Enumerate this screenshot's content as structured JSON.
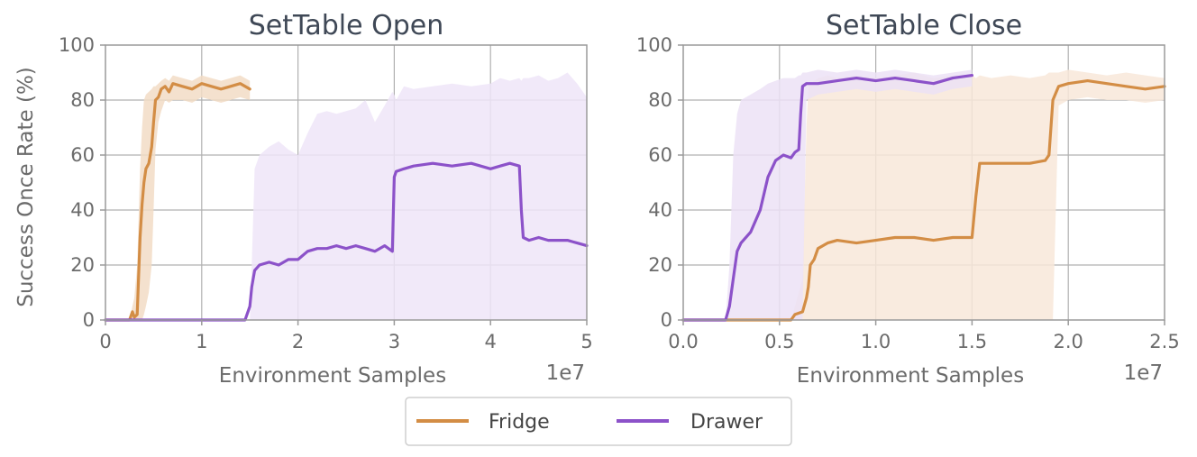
{
  "legend": {
    "placement": "bottom-center",
    "items": [
      {
        "label": "Fridge",
        "color": "#d38d45"
      },
      {
        "label": "Drawer",
        "color": "#8c52c9"
      }
    ]
  },
  "chart_data": [
    {
      "type": "line",
      "title": "SetTable Open",
      "xlabel": "Environment Samples",
      "ylabel": "Success Once Rate (%)",
      "x_offset_text": "1e7",
      "xlim": [
        0,
        5
      ],
      "ylim": [
        0,
        100
      ],
      "xticks": [
        0,
        1,
        2,
        3,
        4,
        5
      ],
      "xtick_labels": [
        "0",
        "1",
        "2",
        "3",
        "4",
        "5"
      ],
      "yticks": [
        0,
        20,
        40,
        60,
        80,
        100
      ],
      "ytick_labels": [
        "0",
        "20",
        "40",
        "60",
        "80",
        "100"
      ],
      "grid": true,
      "series": [
        {
          "name": "Fridge",
          "color": "#d38d45",
          "fill": "#f2dcc5",
          "x": [
            0,
            0.25,
            0.28,
            0.3,
            0.33,
            0.36,
            0.38,
            0.4,
            0.42,
            0.45,
            0.48,
            0.5,
            0.52,
            0.55,
            0.58,
            0.62,
            0.66,
            0.7,
            0.8,
            0.9,
            1.0,
            1.1,
            1.2,
            1.3,
            1.4,
            1.5
          ],
          "y": [
            0,
            0,
            3,
            1,
            2,
            30,
            42,
            50,
            55,
            57,
            63,
            72,
            80,
            81,
            84,
            85,
            83,
            86,
            85,
            84,
            86,
            85,
            84,
            85,
            86,
            84
          ],
          "band_low": [
            0,
            0,
            0,
            0,
            0,
            0,
            0,
            2,
            5,
            10,
            20,
            40,
            62,
            72,
            76,
            80,
            79,
            80,
            80,
            79,
            81,
            80,
            79,
            80,
            81,
            80
          ],
          "band_high": [
            0,
            0,
            5,
            8,
            20,
            55,
            70,
            80,
            82,
            83,
            84,
            85,
            85,
            86,
            87,
            88,
            87,
            89,
            88,
            87,
            89,
            88,
            87,
            88,
            89,
            87
          ]
        },
        {
          "name": "Drawer",
          "color": "#8c52c9",
          "fill": "#efe5f8",
          "x": [
            0,
            1.0,
            1.45,
            1.5,
            1.52,
            1.55,
            1.6,
            1.7,
            1.8,
            1.9,
            2.0,
            2.1,
            2.2,
            2.3,
            2.4,
            2.5,
            2.6,
            2.7,
            2.8,
            2.9,
            2.98,
            3.0,
            3.02,
            3.1,
            3.2,
            3.4,
            3.6,
            3.8,
            4.0,
            4.1,
            4.2,
            4.3,
            4.32,
            4.34,
            4.4,
            4.5,
            4.6,
            4.7,
            4.8,
            4.9,
            5.0
          ],
          "y": [
            0,
            0,
            0,
            5,
            12,
            18,
            20,
            21,
            20,
            22,
            22,
            25,
            26,
            26,
            27,
            26,
            27,
            26,
            25,
            27,
            25,
            52,
            54,
            55,
            56,
            57,
            56,
            57,
            55,
            56,
            57,
            56,
            40,
            30,
            29,
            30,
            29,
            29,
            29,
            28,
            27
          ],
          "band_low": [
            0,
            0,
            0,
            0,
            0,
            0,
            0,
            0,
            0,
            0,
            0,
            0,
            0,
            0,
            0,
            0,
            0,
            0,
            0,
            0,
            0,
            0,
            0,
            0,
            0,
            0,
            0,
            0,
            0,
            0,
            0,
            0,
            0,
            0,
            0,
            0,
            0,
            0,
            0,
            0,
            0
          ],
          "band_high": [
            0,
            0,
            0,
            0,
            20,
            55,
            60,
            63,
            65,
            62,
            60,
            68,
            75,
            76,
            75,
            76,
            77,
            80,
            72,
            78,
            83,
            82,
            80,
            85,
            84,
            85,
            86,
            85,
            86,
            88,
            87,
            88,
            87,
            88,
            88,
            89,
            87,
            88,
            90,
            86,
            81
          ]
        }
      ]
    },
    {
      "type": "line",
      "title": "SetTable Close",
      "xlabel": "Environment Samples",
      "ylabel": "",
      "x_offset_text": "1e7",
      "xlim": [
        0,
        2.5
      ],
      "ylim": [
        0,
        100
      ],
      "xticks": [
        0,
        0.5,
        1.0,
        1.5,
        2.0,
        2.5
      ],
      "xtick_labels": [
        "0.0",
        "0.5",
        "1.0",
        "1.5",
        "2.0",
        "2.5"
      ],
      "yticks": [
        0,
        20,
        40,
        60,
        80,
        100
      ],
      "ytick_labels": [
        "0",
        "20",
        "40",
        "60",
        "80",
        "100"
      ],
      "grid": true,
      "series": [
        {
          "name": "Fridge",
          "color": "#d38d45",
          "fill": "#f8e8d9",
          "x": [
            0,
            0.5,
            0.56,
            0.58,
            0.62,
            0.64,
            0.65,
            0.66,
            0.68,
            0.7,
            0.75,
            0.8,
            0.9,
            1.0,
            1.1,
            1.2,
            1.3,
            1.4,
            1.5,
            1.52,
            1.54,
            1.6,
            1.7,
            1.8,
            1.88,
            1.9,
            1.92,
            1.95,
            2.0,
            2.1,
            2.2,
            2.3,
            2.4,
            2.5
          ],
          "y": [
            0,
            0,
            0,
            2,
            3,
            8,
            12,
            20,
            22,
            26,
            28,
            29,
            28,
            29,
            30,
            30,
            29,
            30,
            30,
            45,
            57,
            57,
            57,
            57,
            58,
            60,
            80,
            85,
            86,
            87,
            86,
            85,
            84,
            85
          ],
          "band_low": [
            0,
            0,
            0,
            0,
            0,
            0,
            0,
            0,
            0,
            0,
            0,
            0,
            0,
            0,
            0,
            0,
            0,
            0,
            0,
            0,
            0,
            0,
            0,
            0,
            0,
            0,
            0,
            78,
            80,
            81,
            80,
            80,
            79,
            80
          ],
          "band_high": [
            0,
            0,
            0,
            5,
            15,
            70,
            85,
            86,
            87,
            88,
            89,
            88,
            89,
            88,
            89,
            90,
            88,
            89,
            89,
            88,
            89,
            88,
            89,
            88,
            89,
            90,
            90,
            90,
            91,
            90,
            89,
            90,
            89,
            88
          ]
        },
        {
          "name": "Drawer",
          "color": "#8c52c9",
          "fill": "#ece2f6",
          "x": [
            0,
            0.22,
            0.24,
            0.26,
            0.28,
            0.3,
            0.35,
            0.4,
            0.44,
            0.48,
            0.52,
            0.56,
            0.58,
            0.6,
            0.61,
            0.62,
            0.64,
            0.7,
            0.8,
            0.9,
            1.0,
            1.1,
            1.2,
            1.3,
            1.4,
            1.5
          ],
          "y": [
            0,
            0,
            5,
            15,
            25,
            28,
            32,
            40,
            52,
            58,
            60,
            59,
            61,
            62,
            75,
            85,
            86,
            86,
            87,
            88,
            87,
            88,
            87,
            86,
            88,
            89
          ],
          "band_low": [
            0,
            0,
            0,
            0,
            0,
            0,
            0,
            0,
            0,
            0,
            0,
            0,
            0,
            0,
            0,
            0,
            80,
            82,
            83,
            84,
            83,
            84,
            83,
            82,
            84,
            85
          ],
          "band_high": [
            0,
            0,
            20,
            60,
            75,
            80,
            82,
            84,
            86,
            87,
            88,
            88,
            88,
            89,
            89,
            90,
            90,
            91,
            90,
            91,
            90,
            91,
            90,
            89,
            90,
            91
          ]
        }
      ]
    }
  ]
}
